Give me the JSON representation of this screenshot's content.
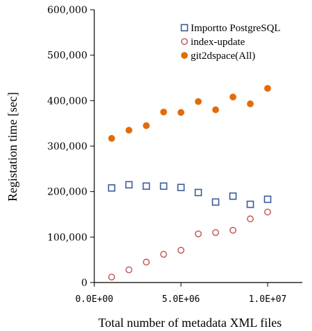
{
  "chart_data": {
    "type": "scatter",
    "title": "",
    "xlabel": "Total number of metadata XML files",
    "ylabel": "Registation time [sec]",
    "xlim": [
      0,
      12000000
    ],
    "ylim": [
      0,
      600000
    ],
    "x_ticks": [
      0,
      5000000,
      10000000
    ],
    "x_tick_labels": [
      "0.0E+00",
      "5.0E+06",
      "1.0E+07"
    ],
    "y_ticks": [
      0,
      100000,
      200000,
      300000,
      400000,
      500000,
      600000
    ],
    "y_tick_labels": [
      "0",
      "100,000",
      "200,000",
      "300,000",
      "400,000",
      "500,000",
      "600,000"
    ],
    "legend_position": "top-right",
    "grid": false,
    "series": [
      {
        "name": "Importto PostgreSQL",
        "marker": "open-square",
        "color": "#3a5a9a",
        "x": [
          1000000,
          2000000,
          3000000,
          4000000,
          5000000,
          6000000,
          7000000,
          8000000,
          9000000,
          10000000
        ],
        "y": [
          208000,
          215000,
          212000,
          212000,
          209000,
          198000,
          177000,
          190000,
          172000,
          183000
        ]
      },
      {
        "name": "index-update",
        "marker": "open-circle",
        "color": "#c0504d",
        "x": [
          1000000,
          2000000,
          3000000,
          4000000,
          5000000,
          6000000,
          7000000,
          8000000,
          9000000,
          10000000
        ],
        "y": [
          12000,
          28000,
          45000,
          62000,
          71000,
          107000,
          110000,
          115000,
          140000,
          155000
        ]
      },
      {
        "name": "git2dspace(All)",
        "marker": "filled-circle",
        "color": "#e36c09",
        "x": [
          1000000,
          2000000,
          3000000,
          4000000,
          5000000,
          6000000,
          7000000,
          8000000,
          9000000,
          10000000
        ],
        "y": [
          317000,
          335000,
          345000,
          375000,
          374000,
          398000,
          380000,
          408000,
          393000,
          427000
        ]
      }
    ]
  }
}
